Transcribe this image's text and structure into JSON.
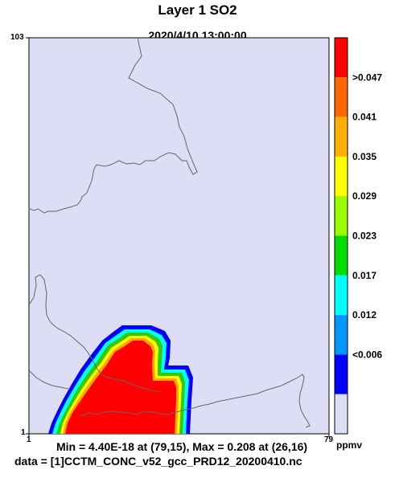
{
  "title": "Layer 1 SO2",
  "subtitle": "2020/4/10 13:00:00",
  "axes": {
    "y_max": "103",
    "y_min": "1",
    "x_min": "1",
    "x_max": "79"
  },
  "legend": {
    "unit": "ppmv",
    "labels": [
      ">0.047",
      "0.041",
      "0.035",
      "0.029",
      "0.023",
      "0.017",
      "0.012",
      "<0.006"
    ],
    "colors": [
      "#ff0000",
      "#ff6600",
      "#ffb000",
      "#ffff00",
      "#99ff00",
      "#00dd00",
      "#00ffff",
      "#0099ff",
      "#0000ff",
      "#ddddf5"
    ]
  },
  "map": {
    "background_color": "#ddddf5",
    "boundary_color": "#666666"
  },
  "stats": "Min = 4.40E-18 at (79,15), Max = 0.208 at (26,16)",
  "data_source": "data = [1]CCTM_CONC_v52_gcc_PRD12_20200410.nc"
}
